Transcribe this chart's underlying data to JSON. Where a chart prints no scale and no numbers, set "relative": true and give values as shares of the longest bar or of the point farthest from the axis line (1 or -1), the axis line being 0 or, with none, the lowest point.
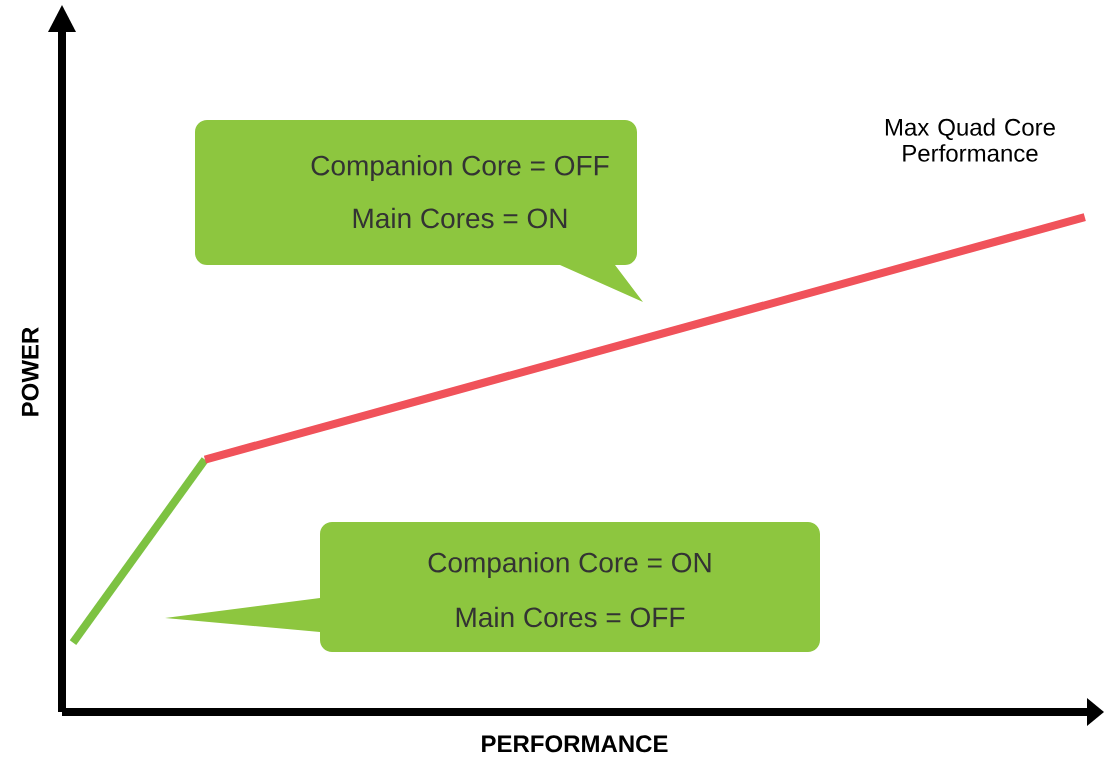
{
  "chart_data": {
    "type": "line",
    "relative": true,
    "xlabel": "PERFORMANCE",
    "ylabel": "POWER",
    "categories": [
      null,
      null,
      null,
      null,
      null,
      null,
      null,
      null,
      null,
      null,
      null,
      null,
      null,
      null,
      null,
      null,
      null,
      null,
      null,
      null,
      null,
      null,
      null,
      null
    ],
    "series": [
      {
        "color": "#7dc242",
        "values": [
          0.14,
          null,
          null,
          0.51,
          null,
          null,
          null,
          null,
          null,
          null,
          null,
          null,
          null,
          null,
          null,
          null,
          null,
          null,
          null,
          null,
          null,
          null,
          null,
          null
        ]
      },
      {
        "color": "#f0525a",
        "values": [
          null,
          null,
          null,
          0.51,
          null,
          null,
          null,
          null,
          null,
          null,
          null,
          null,
          null,
          null,
          null,
          null,
          null,
          null,
          null,
          null,
          null,
          null,
          null,
          1.0
        ]
      }
    ],
    "annotations": [
      "Max Quad Core Performance",
      "Companion Core = OFF",
      "Main Cores = ON",
      "Companion Core = ON",
      "Main Cores = OFF"
    ]
  }
}
